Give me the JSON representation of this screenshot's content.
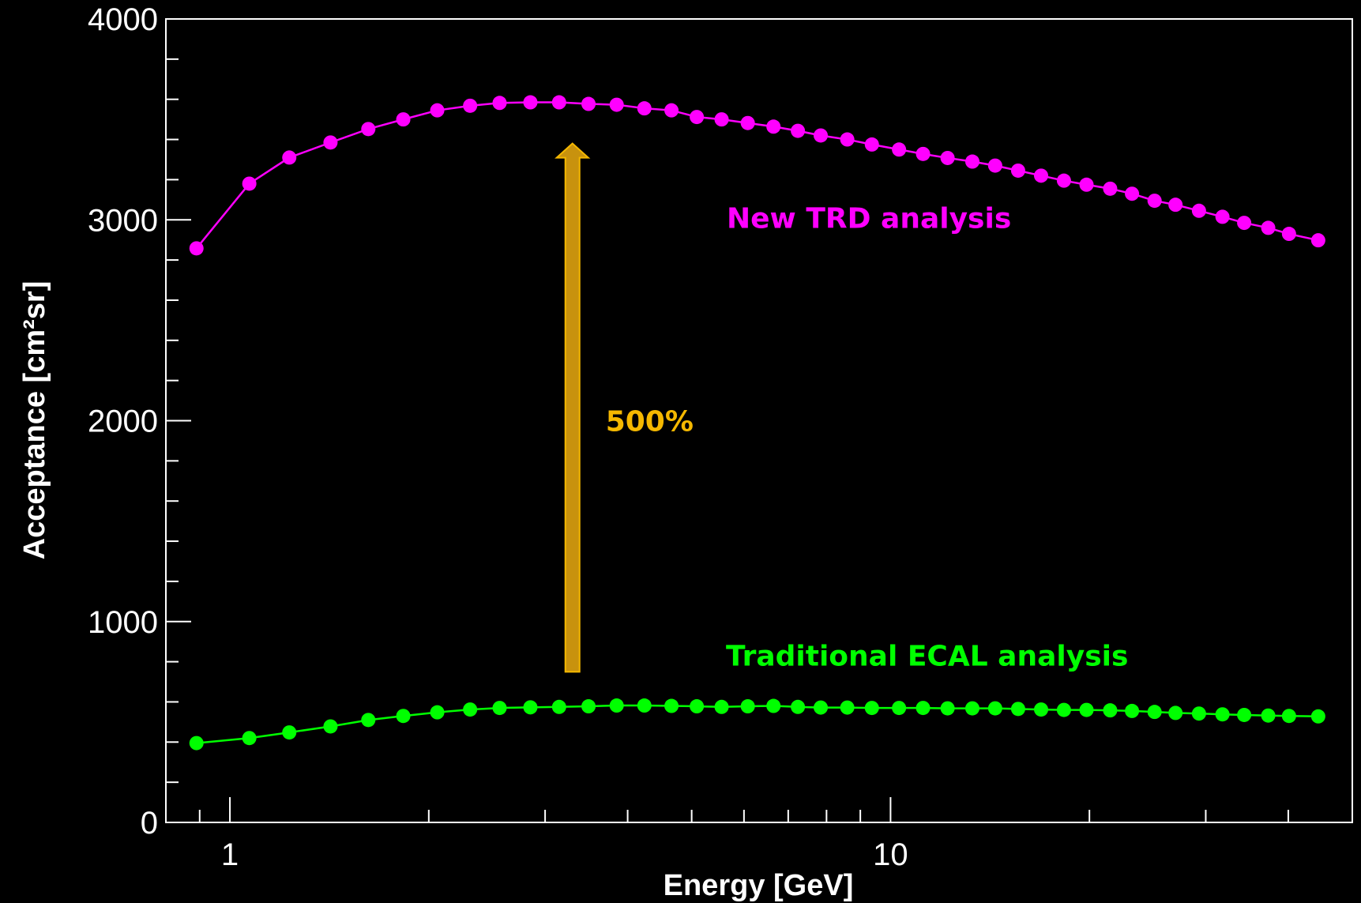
{
  "chart_data": {
    "type": "line",
    "xlabel": "Energy [GeV]",
    "ylabel": "Acceptance [cm²sr]",
    "xscale": "log",
    "xlim": [
      0.8,
      50
    ],
    "ylim": [
      0,
      4000
    ],
    "grid": false,
    "x_ticks": [
      {
        "value": 1,
        "label": "1"
      },
      {
        "value": 10,
        "label": "10"
      }
    ],
    "y_ticks": [
      {
        "value": 0,
        "label": "0"
      },
      {
        "value": 1000,
        "label": "1000"
      },
      {
        "value": 2000,
        "label": "2000"
      },
      {
        "value": 3000,
        "label": "3000"
      },
      {
        "value": 4000,
        "label": "4000"
      }
    ],
    "x": [
      0.89,
      1.07,
      1.23,
      1.42,
      1.62,
      1.83,
      2.06,
      2.31,
      2.56,
      2.85,
      3.15,
      3.49,
      3.85,
      4.24,
      4.66,
      5.09,
      5.55,
      6.08,
      6.65,
      7.24,
      7.84,
      8.6,
      9.37,
      10.3,
      11.2,
      12.2,
      13.3,
      14.4,
      15.6,
      16.9,
      18.3,
      19.8,
      21.5,
      23.2,
      25.1,
      27.0,
      29.3,
      31.8,
      34.3,
      37.3,
      40.1,
      44.4
    ],
    "series": [
      {
        "name": "New TRD analysis",
        "color": "#ff00ff",
        "values": [
          2858,
          3180,
          3310,
          3385,
          3452,
          3500,
          3545,
          3568,
          3582,
          3585,
          3585,
          3577,
          3573,
          3555,
          3545,
          3512,
          3500,
          3482,
          3464,
          3443,
          3420,
          3400,
          3375,
          3350,
          3328,
          3308,
          3290,
          3270,
          3245,
          3220,
          3195,
          3175,
          3155,
          3130,
          3095,
          3075,
          3045,
          3015,
          2985,
          2960,
          2930,
          2898
        ]
      },
      {
        "name": "Traditional ECAL analysis",
        "color": "#00ff00",
        "values": [
          395,
          420,
          448,
          478,
          510,
          530,
          548,
          562,
          570,
          573,
          575,
          578,
          582,
          582,
          580,
          578,
          575,
          578,
          580,
          575,
          572,
          572,
          570,
          570,
          570,
          568,
          568,
          568,
          565,
          562,
          560,
          560,
          558,
          555,
          550,
          545,
          542,
          538,
          535,
          532,
          530,
          528
        ]
      }
    ],
    "annotations": [
      {
        "text": "500%",
        "color": "#f5b800",
        "arrow_from_y": 750,
        "arrow_to_y": 3380,
        "x": 3.3
      }
    ]
  }
}
